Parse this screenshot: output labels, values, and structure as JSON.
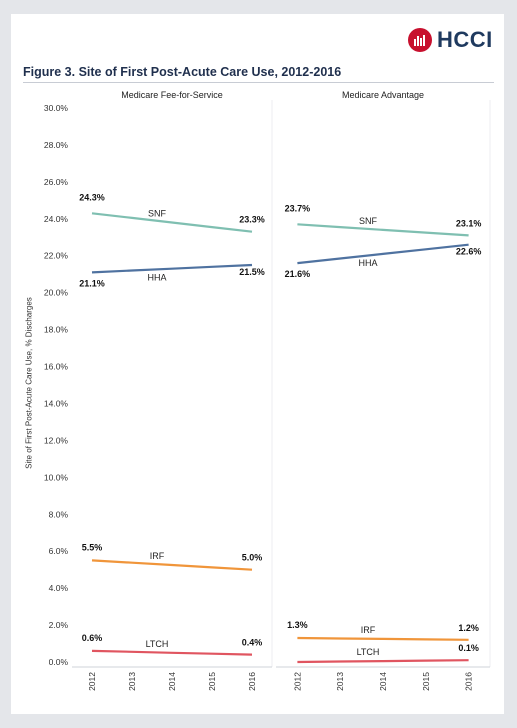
{
  "logo": {
    "text": "HCCI"
  },
  "figure": {
    "title": "Figure 3. Site of First Post-Acute Care Use, 2012-2016"
  },
  "colors": {
    "SNF": "#7fbfb1",
    "HHA": "#4f72a0",
    "IRF": "#f0953a",
    "LTCH": "#e05560"
  },
  "chart_data": {
    "type": "line",
    "ylabel": "Site of First Post-Acute Care Use, % Discharges",
    "ylim": [
      0,
      30
    ],
    "yticks": [
      "0.0%",
      "2.0%",
      "4.0%",
      "6.0%",
      "8.0%",
      "10.0%",
      "12.0%",
      "14.0%",
      "16.0%",
      "18.0%",
      "20.0%",
      "22.0%",
      "24.0%",
      "26.0%",
      "28.0%",
      "30.0%"
    ],
    "x": [
      "2012",
      "2013",
      "2014",
      "2015",
      "2016"
    ],
    "grid": false,
    "panels": [
      {
        "title": "Medicare Fee-for-Service",
        "series": [
          {
            "name": "SNF",
            "values": [
              24.3,
              24.05,
              23.8,
              23.55,
              23.3
            ],
            "labels": [
              "24.3%",
              "23.3%"
            ]
          },
          {
            "name": "HHA",
            "values": [
              21.1,
              21.2,
              21.3,
              21.4,
              21.5
            ],
            "labels": [
              "21.1%",
              "21.5%"
            ]
          },
          {
            "name": "IRF",
            "values": [
              5.5,
              5.375,
              5.25,
              5.125,
              5.0
            ],
            "labels": [
              "5.5%",
              "5.0%"
            ]
          },
          {
            "name": "LTCH",
            "values": [
              0.6,
              0.55,
              0.5,
              0.45,
              0.4
            ],
            "labels": [
              "0.6%",
              "0.4%"
            ]
          }
        ]
      },
      {
        "title": "Medicare Advantage",
        "series": [
          {
            "name": "SNF",
            "values": [
              23.7,
              23.55,
              23.4,
              23.25,
              23.1
            ],
            "labels": [
              "23.7%",
              "23.1%"
            ]
          },
          {
            "name": "HHA",
            "values": [
              21.6,
              21.85,
              22.1,
              22.35,
              22.6
            ],
            "labels": [
              "21.6%",
              "22.6%"
            ]
          },
          {
            "name": "IRF",
            "values": [
              1.3,
              1.275,
              1.25,
              1.225,
              1.2
            ],
            "labels": [
              "1.3%",
              "1.2%"
            ]
          },
          {
            "name": "LTCH",
            "values": [
              0.0,
              0.025,
              0.05,
              0.075,
              0.1
            ],
            "labels": [
              "",
              "0.1%"
            ]
          }
        ]
      }
    ]
  }
}
